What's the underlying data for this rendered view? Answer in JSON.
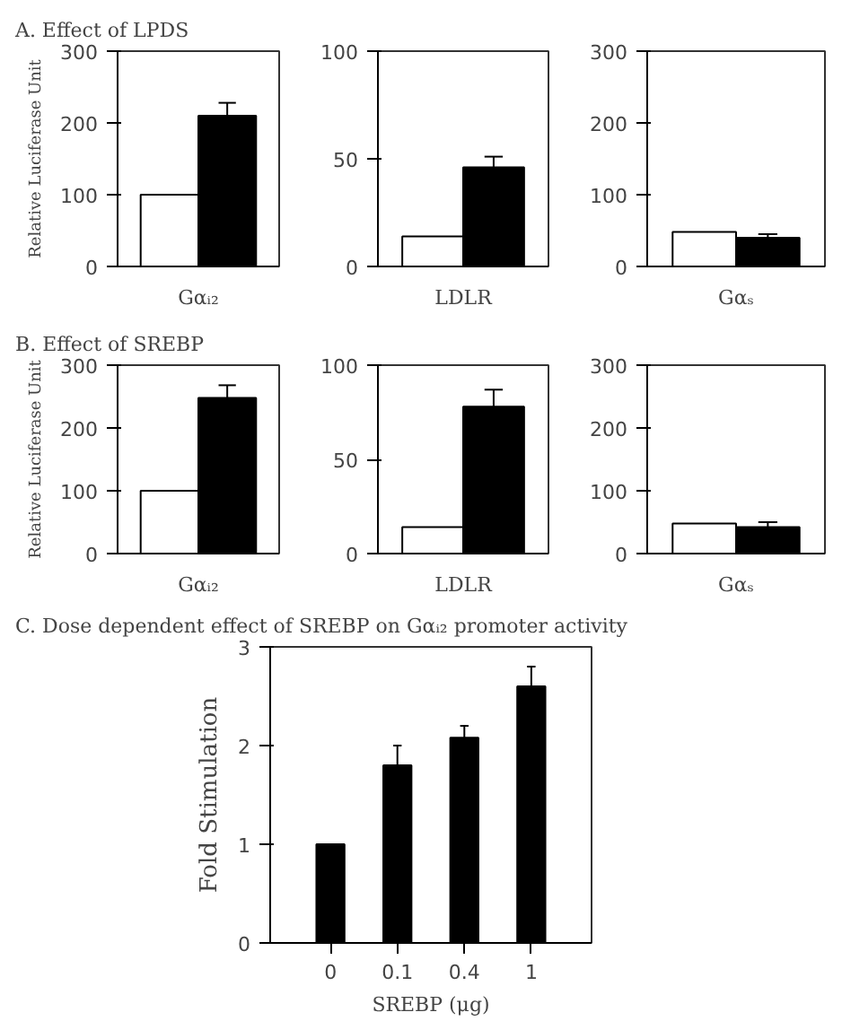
{
  "chart_data": [
    {
      "type": "bar",
      "title": "A. Effect of LPDS",
      "xlabel": "Gαᵢ₂",
      "ylabel": "Relative Luciferase Unit",
      "categories": [
        null,
        null
      ],
      "values": [
        100,
        210
      ],
      "colors": [
        "#ffffff",
        "#000000"
      ],
      "errors": [
        null,
        18
      ],
      "ylim": [
        0,
        300
      ],
      "yticks": [
        0,
        100,
        200,
        300
      ],
      "grid": false
    },
    {
      "type": "bar",
      "xlabel": "LDLR",
      "categories": [
        null,
        null
      ],
      "values": [
        14,
        46
      ],
      "colors": [
        "#ffffff",
        "#000000"
      ],
      "errors": [
        null,
        5
      ],
      "ylim": [
        0,
        100
      ],
      "yticks": [
        0,
        50,
        100
      ],
      "grid": false
    },
    {
      "type": "bar",
      "xlabel": "Gαₛ",
      "categories": [
        null,
        null
      ],
      "values": [
        48,
        40
      ],
      "colors": [
        "#ffffff",
        "#000000"
      ],
      "errors": [
        null,
        5
      ],
      "ylim": [
        0,
        300
      ],
      "yticks": [
        0,
        100,
        200,
        300
      ],
      "grid": false
    },
    {
      "type": "bar",
      "title": "B. Effect of SREBP",
      "xlabel": "Gαᵢ₂",
      "ylabel": "Relative Luciferase Unit",
      "categories": [
        null,
        null
      ],
      "values": [
        100,
        248
      ],
      "colors": [
        "#ffffff",
        "#000000"
      ],
      "errors": [
        null,
        20
      ],
      "ylim": [
        0,
        300
      ],
      "yticks": [
        0,
        100,
        200,
        300
      ],
      "grid": false
    },
    {
      "type": "bar",
      "xlabel": "LDLR",
      "categories": [
        null,
        null
      ],
      "values": [
        14,
        78
      ],
      "colors": [
        "#ffffff",
        "#000000"
      ],
      "errors": [
        null,
        9
      ],
      "ylim": [
        0,
        100
      ],
      "yticks": [
        0,
        50,
        100
      ],
      "grid": false
    },
    {
      "type": "bar",
      "xlabel": "Gαₛ",
      "categories": [
        null,
        null
      ],
      "values": [
        48,
        42
      ],
      "colors": [
        "#ffffff",
        "#000000"
      ],
      "errors": [
        null,
        8
      ],
      "ylim": [
        0,
        300
      ],
      "yticks": [
        0,
        100,
        200,
        300
      ],
      "grid": false
    },
    {
      "type": "bar",
      "title": "C. Dose dependent effect of SREBP on Gαᵢ₂ promoter activity",
      "xlabel": "SREBP (μg)",
      "ylabel": "Fold Stimulation",
      "categories": [
        "0",
        "0.1",
        "0.4",
        "1"
      ],
      "values": [
        1,
        1.8,
        2.08,
        2.6
      ],
      "colors": [
        "#000000",
        "#000000",
        "#000000",
        "#000000"
      ],
      "errors": [
        null,
        0.2,
        0.12,
        0.2
      ],
      "ylim": [
        0,
        3
      ],
      "yticks": [
        0,
        1,
        2,
        3
      ],
      "grid": false
    }
  ]
}
